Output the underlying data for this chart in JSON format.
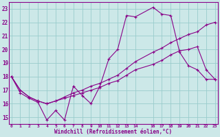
{
  "xlabel": "Windchill (Refroidissement éolien,°C)",
  "x_ticks": [
    0,
    1,
    2,
    3,
    4,
    5,
    6,
    7,
    8,
    9,
    10,
    11,
    12,
    13,
    14,
    16,
    17,
    18,
    19,
    20,
    21,
    22,
    23
  ],
  "ylim": [
    14.5,
    23.5
  ],
  "xlim": [
    -0.3,
    23.3
  ],
  "yticks": [
    15,
    16,
    17,
    18,
    19,
    20,
    21,
    22,
    23
  ],
  "bg_color": "#cce8e8",
  "line_color": "#880088",
  "grid_color": "#99cccc",
  "line1_x": [
    0,
    1,
    2,
    3,
    4,
    5,
    6,
    7,
    8,
    9,
    10,
    11,
    12,
    13,
    14,
    16,
    17,
    18,
    19,
    20,
    21,
    22,
    23
  ],
  "line1_y": [
    18.0,
    16.8,
    16.4,
    16.1,
    14.8,
    15.5,
    14.8,
    17.3,
    16.6,
    16.0,
    17.3,
    19.3,
    20.0,
    22.5,
    22.4,
    23.1,
    22.6,
    22.5,
    19.8,
    18.8,
    18.5,
    17.8,
    17.8
  ],
  "line2_x": [
    0,
    1,
    2,
    3,
    4,
    5,
    6,
    7,
    8,
    9,
    10,
    11,
    12,
    13,
    14,
    16,
    17,
    18,
    19,
    20,
    21,
    22,
    23
  ],
  "line2_y": [
    18.0,
    17.0,
    16.5,
    16.2,
    16.0,
    16.2,
    16.5,
    16.8,
    17.0,
    17.3,
    17.5,
    17.8,
    18.1,
    18.6,
    19.1,
    19.8,
    20.1,
    20.5,
    20.8,
    21.1,
    21.3,
    21.8,
    22.0
  ],
  "line3_x": [
    0,
    1,
    2,
    3,
    4,
    5,
    6,
    7,
    8,
    9,
    10,
    11,
    12,
    13,
    14,
    16,
    17,
    18,
    19,
    20,
    21,
    22,
    23
  ],
  "line3_y": [
    18.0,
    17.0,
    16.5,
    16.2,
    16.0,
    16.2,
    16.4,
    16.6,
    16.8,
    17.0,
    17.2,
    17.5,
    17.7,
    18.1,
    18.5,
    18.9,
    19.2,
    19.6,
    19.9,
    20.0,
    20.2,
    18.5,
    17.8
  ]
}
